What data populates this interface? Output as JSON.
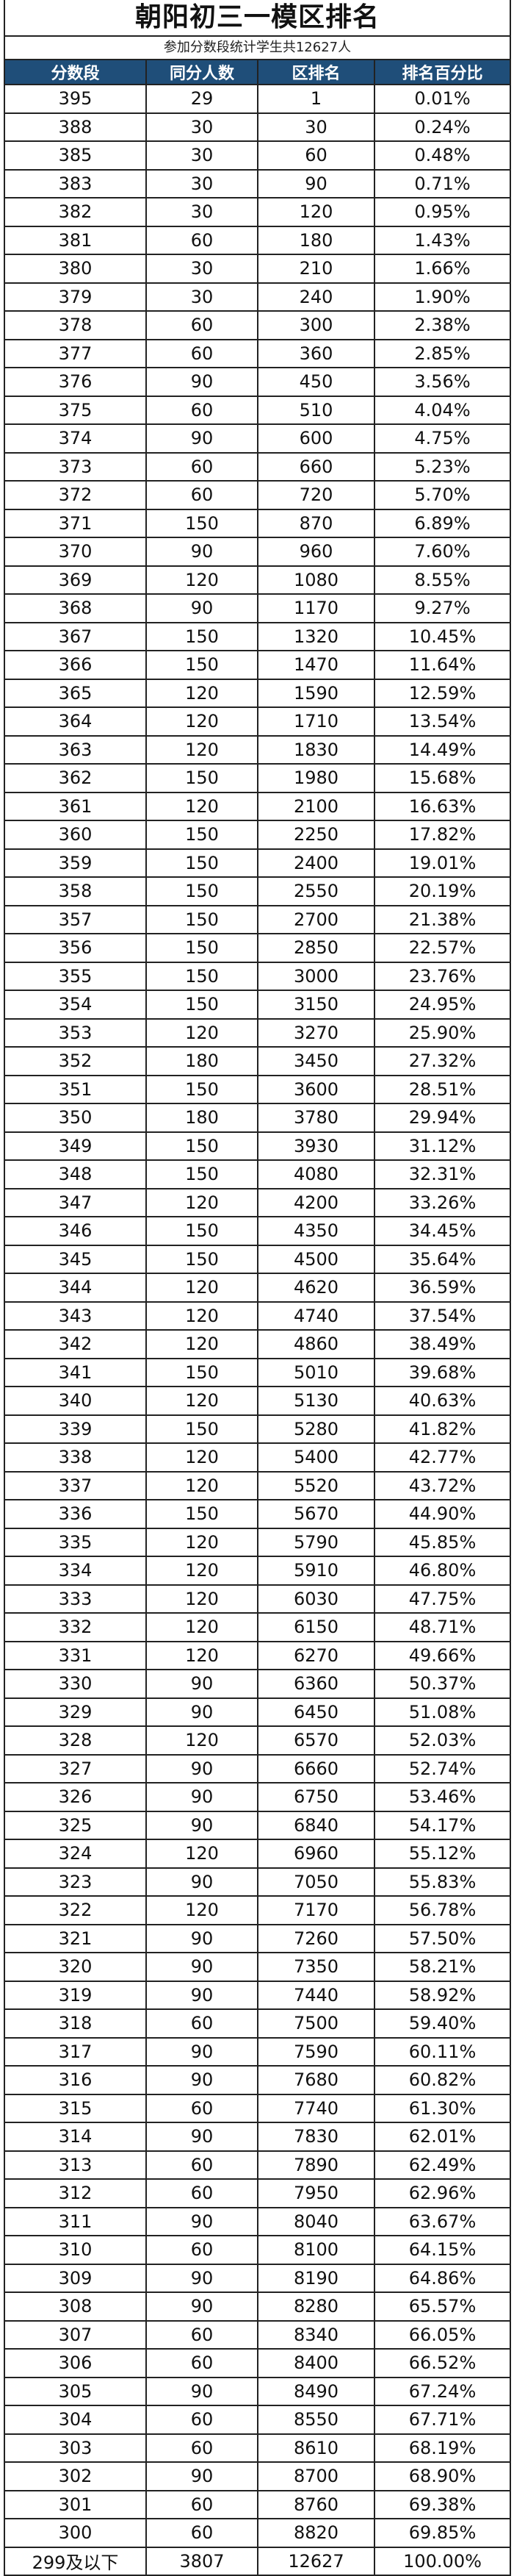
{
  "title": "朝阳初三一模区排名",
  "subtitle": "参加分数段统计学生共12627人",
  "header_color": "#1f4e79",
  "columns": [
    "分数段",
    "同分人数",
    "区排名",
    "排名百分比"
  ],
  "rows": [
    [
      "395",
      "29",
      "1",
      "0.01%"
    ],
    [
      "388",
      "30",
      "30",
      "0.24%"
    ],
    [
      "385",
      "30",
      "60",
      "0.48%"
    ],
    [
      "383",
      "30",
      "90",
      "0.71%"
    ],
    [
      "382",
      "30",
      "120",
      "0.95%"
    ],
    [
      "381",
      "60",
      "180",
      "1.43%"
    ],
    [
      "380",
      "30",
      "210",
      "1.66%"
    ],
    [
      "379",
      "30",
      "240",
      "1.90%"
    ],
    [
      "378",
      "60",
      "300",
      "2.38%"
    ],
    [
      "377",
      "60",
      "360",
      "2.85%"
    ],
    [
      "376",
      "90",
      "450",
      "3.56%"
    ],
    [
      "375",
      "60",
      "510",
      "4.04%"
    ],
    [
      "374",
      "90",
      "600",
      "4.75%"
    ],
    [
      "373",
      "60",
      "660",
      "5.23%"
    ],
    [
      "372",
      "60",
      "720",
      "5.70%"
    ],
    [
      "371",
      "150",
      "870",
      "6.89%"
    ],
    [
      "370",
      "90",
      "960",
      "7.60%"
    ],
    [
      "369",
      "120",
      "1080",
      "8.55%"
    ],
    [
      "368",
      "90",
      "1170",
      "9.27%"
    ],
    [
      "367",
      "150",
      "1320",
      "10.45%"
    ],
    [
      "366",
      "150",
      "1470",
      "11.64%"
    ],
    [
      "365",
      "120",
      "1590",
      "12.59%"
    ],
    [
      "364",
      "120",
      "1710",
      "13.54%"
    ],
    [
      "363",
      "120",
      "1830",
      "14.49%"
    ],
    [
      "362",
      "150",
      "1980",
      "15.68%"
    ],
    [
      "361",
      "120",
      "2100",
      "16.63%"
    ],
    [
      "360",
      "150",
      "2250",
      "17.82%"
    ],
    [
      "359",
      "150",
      "2400",
      "19.01%"
    ],
    [
      "358",
      "150",
      "2550",
      "20.19%"
    ],
    [
      "357",
      "150",
      "2700",
      "21.38%"
    ],
    [
      "356",
      "150",
      "2850",
      "22.57%"
    ],
    [
      "355",
      "150",
      "3000",
      "23.76%"
    ],
    [
      "354",
      "150",
      "3150",
      "24.95%"
    ],
    [
      "353",
      "120",
      "3270",
      "25.90%"
    ],
    [
      "352",
      "180",
      "3450",
      "27.32%"
    ],
    [
      "351",
      "150",
      "3600",
      "28.51%"
    ],
    [
      "350",
      "180",
      "3780",
      "29.94%"
    ],
    [
      "349",
      "150",
      "3930",
      "31.12%"
    ],
    [
      "348",
      "150",
      "4080",
      "32.31%"
    ],
    [
      "347",
      "120",
      "4200",
      "33.26%"
    ],
    [
      "346",
      "150",
      "4350",
      "34.45%"
    ],
    [
      "345",
      "150",
      "4500",
      "35.64%"
    ],
    [
      "344",
      "120",
      "4620",
      "36.59%"
    ],
    [
      "343",
      "120",
      "4740",
      "37.54%"
    ],
    [
      "342",
      "120",
      "4860",
      "38.49%"
    ],
    [
      "341",
      "150",
      "5010",
      "39.68%"
    ],
    [
      "340",
      "120",
      "5130",
      "40.63%"
    ],
    [
      "339",
      "150",
      "5280",
      "41.82%"
    ],
    [
      "338",
      "120",
      "5400",
      "42.77%"
    ],
    [
      "337",
      "120",
      "5520",
      "43.72%"
    ],
    [
      "336",
      "150",
      "5670",
      "44.90%"
    ],
    [
      "335",
      "120",
      "5790",
      "45.85%"
    ],
    [
      "334",
      "120",
      "5910",
      "46.80%"
    ],
    [
      "333",
      "120",
      "6030",
      "47.75%"
    ],
    [
      "332",
      "120",
      "6150",
      "48.71%"
    ],
    [
      "331",
      "120",
      "6270",
      "49.66%"
    ],
    [
      "330",
      "90",
      "6360",
      "50.37%"
    ],
    [
      "329",
      "90",
      "6450",
      "51.08%"
    ],
    [
      "328",
      "120",
      "6570",
      "52.03%"
    ],
    [
      "327",
      "90",
      "6660",
      "52.74%"
    ],
    [
      "326",
      "90",
      "6750",
      "53.46%"
    ],
    [
      "325",
      "90",
      "6840",
      "54.17%"
    ],
    [
      "324",
      "120",
      "6960",
      "55.12%"
    ],
    [
      "323",
      "90",
      "7050",
      "55.83%"
    ],
    [
      "322",
      "120",
      "7170",
      "56.78%"
    ],
    [
      "321",
      "90",
      "7260",
      "57.50%"
    ],
    [
      "320",
      "90",
      "7350",
      "58.21%"
    ],
    [
      "319",
      "90",
      "7440",
      "58.92%"
    ],
    [
      "318",
      "60",
      "7500",
      "59.40%"
    ],
    [
      "317",
      "90",
      "7590",
      "60.11%"
    ],
    [
      "316",
      "90",
      "7680",
      "60.82%"
    ],
    [
      "315",
      "60",
      "7740",
      "61.30%"
    ],
    [
      "314",
      "90",
      "7830",
      "62.01%"
    ],
    [
      "313",
      "60",
      "7890",
      "62.49%"
    ],
    [
      "312",
      "60",
      "7950",
      "62.96%"
    ],
    [
      "311",
      "90",
      "8040",
      "63.67%"
    ],
    [
      "310",
      "60",
      "8100",
      "64.15%"
    ],
    [
      "309",
      "90",
      "8190",
      "64.86%"
    ],
    [
      "308",
      "90",
      "8280",
      "65.57%"
    ],
    [
      "307",
      "60",
      "8340",
      "66.05%"
    ],
    [
      "306",
      "60",
      "8400",
      "66.52%"
    ],
    [
      "305",
      "90",
      "8490",
      "67.24%"
    ],
    [
      "304",
      "60",
      "8550",
      "67.71%"
    ],
    [
      "303",
      "60",
      "8610",
      "68.19%"
    ],
    [
      "302",
      "90",
      "8700",
      "68.90%"
    ],
    [
      "301",
      "60",
      "8760",
      "69.38%"
    ],
    [
      "300",
      "60",
      "8820",
      "69.85%"
    ],
    [
      "299及以下",
      "3807",
      "12627",
      "100.00%"
    ]
  ]
}
